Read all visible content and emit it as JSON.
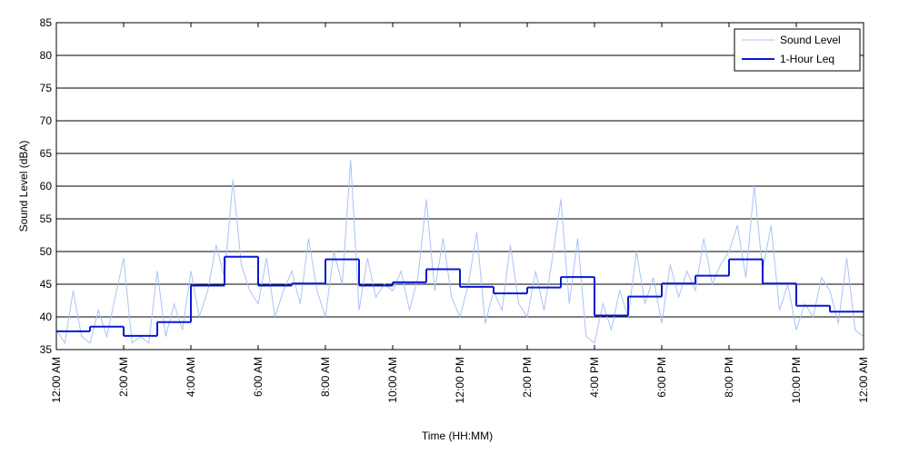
{
  "chart_data": {
    "type": "line",
    "x_label": "Time (HH:MM)",
    "y_label": "Sound Level (dBA)",
    "xlim": [
      0,
      24
    ],
    "xticks": [
      {
        "value": 0,
        "label": "12:00 AM"
      },
      {
        "value": 2,
        "label": "2:00 AM"
      },
      {
        "value": 4,
        "label": "4:00 AM"
      },
      {
        "value": 6,
        "label": "6:00 AM"
      },
      {
        "value": 8,
        "label": "8:00 AM"
      },
      {
        "value": 10,
        "label": "10:00 AM"
      },
      {
        "value": 12,
        "label": "12:00 PM"
      },
      {
        "value": 14,
        "label": "2:00 PM"
      },
      {
        "value": 16,
        "label": "4:00 PM"
      },
      {
        "value": 18,
        "label": "6:00 PM"
      },
      {
        "value": 20,
        "label": "8:00 PM"
      },
      {
        "value": 22,
        "label": "10:00 PM"
      },
      {
        "value": 24,
        "label": "12:00 AM"
      }
    ],
    "ylim": [
      35,
      85
    ],
    "yticks": [
      35,
      40,
      45,
      50,
      55,
      60,
      65,
      70,
      75,
      80,
      85
    ],
    "grid": true,
    "legend": "upper right",
    "series": [
      {
        "name": "Sound Level",
        "color": "#a9c4f5",
        "style": "line",
        "x": [
          0,
          0.25,
          0.5,
          0.75,
          1,
          1.25,
          1.5,
          1.75,
          2,
          2.25,
          2.5,
          2.75,
          3,
          3.25,
          3.5,
          3.75,
          4,
          4.25,
          4.5,
          4.75,
          5,
          5.25,
          5.5,
          5.75,
          6,
          6.25,
          6.5,
          6.75,
          7,
          7.25,
          7.5,
          7.75,
          8,
          8.25,
          8.5,
          8.75,
          9,
          9.25,
          9.5,
          9.75,
          10,
          10.25,
          10.5,
          10.75,
          11,
          11.25,
          11.5,
          11.75,
          12,
          12.25,
          12.5,
          12.75,
          13,
          13.25,
          13.5,
          13.75,
          14,
          14.25,
          14.5,
          14.75,
          15,
          15.25,
          15.5,
          15.75,
          16,
          16.25,
          16.5,
          16.75,
          17,
          17.25,
          17.5,
          17.75,
          18,
          18.25,
          18.5,
          18.75,
          19,
          19.25,
          19.5,
          19.75,
          20,
          20.25,
          20.5,
          20.75,
          21,
          21.25,
          21.5,
          21.75,
          22,
          22.25,
          22.5,
          22.75,
          23,
          23.25,
          23.5,
          23.75,
          24
        ],
        "values": [
          38,
          36,
          44,
          37,
          36,
          41,
          37,
          43,
          49,
          36,
          37,
          36,
          47,
          37,
          42,
          38,
          47,
          40,
          44,
          51,
          46,
          61,
          48,
          44,
          42,
          49,
          40,
          44,
          47,
          42,
          52,
          44,
          40,
          50,
          45,
          64,
          41,
          49,
          43,
          45,
          44,
          47,
          41,
          46,
          58,
          44,
          52,
          43,
          40,
          45,
          53,
          39,
          44,
          41,
          51,
          42,
          40,
          47,
          41,
          49,
          58,
          42,
          52,
          37,
          36,
          42,
          38,
          44,
          40,
          50,
          42,
          46,
          39,
          48,
          43,
          47,
          44,
          52,
          45,
          48,
          50,
          54,
          46,
          60,
          47,
          54,
          41,
          45,
          38,
          42,
          40,
          46,
          44,
          39,
          49,
          38,
          37
        ]
      },
      {
        "name": "1-Hour Leq",
        "color": "#0a1ad0",
        "style": "step",
        "x": [
          0,
          1,
          2,
          3,
          4,
          5,
          6,
          7,
          8,
          9,
          10,
          11,
          12,
          13,
          14,
          15,
          16,
          17,
          18,
          19,
          20,
          21,
          22,
          23
        ],
        "values": [
          37.8,
          38.5,
          37.1,
          39.2,
          44.8,
          49.2,
          44.8,
          45.1,
          48.8,
          44.8,
          45.3,
          47.3,
          44.6,
          43.6,
          44.5,
          46.1,
          40.2,
          43.1,
          45.1,
          46.3,
          48.8,
          45.1,
          41.7,
          40.8
        ]
      }
    ]
  }
}
